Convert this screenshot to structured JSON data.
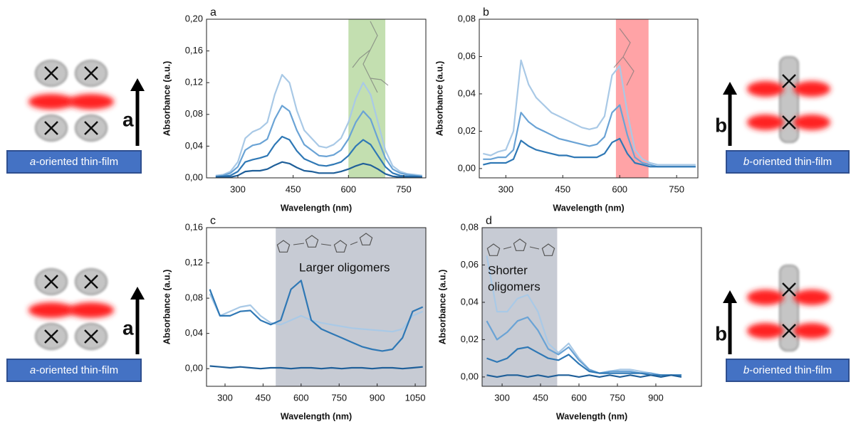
{
  "chart_data": [
    {
      "type": "line",
      "panel_label": "a",
      "xlabel": "Wavelength (nm)",
      "ylabel": "Absorbance (a.u.)",
      "xlim": [
        215,
        810
      ],
      "ylim": [
        0,
        0.2
      ],
      "xticks": [
        300,
        450,
        600,
        750
      ],
      "yticks": [
        {
          "value": 0,
          "label": "0,00"
        },
        {
          "value": 0.04,
          "label": "0,04"
        },
        {
          "value": 0.08,
          "label": "0,08"
        },
        {
          "value": 0.12,
          "label": "0,12"
        },
        {
          "value": 0.16,
          "label": "0,16"
        },
        {
          "value": 0.2,
          "label": "0,20"
        }
      ],
      "highlight": {
        "x": [
          600,
          700
        ],
        "color": "#a9d18e"
      },
      "x": [
        240,
        260,
        280,
        300,
        320,
        340,
        360,
        380,
        400,
        420,
        440,
        460,
        480,
        500,
        520,
        540,
        560,
        580,
        600,
        620,
        640,
        660,
        680,
        700,
        720,
        740,
        760,
        780,
        800
      ],
      "series": [
        {
          "color": "#a9c9e6",
          "values": [
            0.003,
            0.004,
            0.008,
            0.02,
            0.05,
            0.058,
            0.062,
            0.07,
            0.105,
            0.13,
            0.12,
            0.085,
            0.06,
            0.05,
            0.04,
            0.038,
            0.042,
            0.05,
            0.07,
            0.1,
            0.12,
            0.105,
            0.07,
            0.035,
            0.015,
            0.008,
            0.005,
            0.004,
            0.003
          ]
        },
        {
          "color": "#6aa3d5",
          "values": [
            0.002,
            0.003,
            0.006,
            0.014,
            0.035,
            0.041,
            0.043,
            0.049,
            0.074,
            0.091,
            0.084,
            0.06,
            0.042,
            0.035,
            0.028,
            0.027,
            0.029,
            0.035,
            0.049,
            0.07,
            0.084,
            0.074,
            0.049,
            0.025,
            0.011,
            0.006,
            0.004,
            0.003,
            0.002
          ]
        },
        {
          "color": "#2f78b5",
          "values": [
            0.001,
            0.002,
            0.003,
            0.008,
            0.02,
            0.023,
            0.025,
            0.028,
            0.042,
            0.052,
            0.048,
            0.034,
            0.024,
            0.02,
            0.016,
            0.015,
            0.017,
            0.02,
            0.028,
            0.04,
            0.048,
            0.042,
            0.028,
            0.014,
            0.006,
            0.003,
            0.002,
            0.002,
            0.001
          ]
        },
        {
          "color": "#1f5f99",
          "values": [
            0.001,
            0.001,
            0.001,
            0.003,
            0.008,
            0.009,
            0.009,
            0.011,
            0.016,
            0.02,
            0.018,
            0.013,
            0.009,
            0.008,
            0.006,
            0.006,
            0.006,
            0.008,
            0.011,
            0.015,
            0.018,
            0.016,
            0.011,
            0.005,
            0.002,
            0.001,
            0.001,
            0.001,
            0.001
          ]
        }
      ]
    },
    {
      "type": "line",
      "panel_label": "b",
      "xlabel": "Wavelength (nm)",
      "ylabel": "Absorbance (a.u.)",
      "xlim": [
        230,
        806
      ],
      "ylim": [
        -0.005,
        0.08
      ],
      "xticks": [
        300,
        450,
        600,
        750
      ],
      "yticks": [
        {
          "value": 0,
          "label": "0,00"
        },
        {
          "value": 0.02,
          "label": "0,02"
        },
        {
          "value": 0.04,
          "label": "0,04"
        },
        {
          "value": 0.06,
          "label": "0,06"
        },
        {
          "value": 0.08,
          "label": "0,08"
        }
      ],
      "highlight": {
        "x": [
          590,
          676
        ],
        "color": "#ff7c80"
      },
      "x": [
        240,
        260,
        280,
        300,
        320,
        340,
        360,
        380,
        400,
        420,
        440,
        460,
        480,
        500,
        520,
        540,
        560,
        580,
        600,
        620,
        640,
        660,
        680,
        700,
        720,
        740,
        760,
        780,
        800
      ],
      "series": [
        {
          "color": "#a9c9e6",
          "values": [
            0.008,
            0.007,
            0.009,
            0.01,
            0.02,
            0.058,
            0.045,
            0.038,
            0.034,
            0.03,
            0.028,
            0.026,
            0.024,
            0.022,
            0.021,
            0.022,
            0.028,
            0.05,
            0.055,
            0.03,
            0.01,
            0.005,
            0.003,
            0.002,
            0.002,
            0.002,
            0.002,
            0.002,
            0.002
          ]
        },
        {
          "color": "#6aa3d5",
          "values": [
            0.005,
            0.005,
            0.006,
            0.006,
            0.01,
            0.03,
            0.025,
            0.022,
            0.02,
            0.018,
            0.016,
            0.015,
            0.014,
            0.013,
            0.012,
            0.013,
            0.017,
            0.03,
            0.034,
            0.018,
            0.006,
            0.003,
            0.002,
            0.001,
            0.001,
            0.001,
            0.001,
            0.001,
            0.001
          ]
        },
        {
          "color": "#2f78b5",
          "values": [
            0.002,
            0.003,
            0.003,
            0.003,
            0.005,
            0.015,
            0.012,
            0.01,
            0.009,
            0.008,
            0.007,
            0.007,
            0.006,
            0.006,
            0.006,
            0.006,
            0.008,
            0.014,
            0.016,
            0.008,
            0.003,
            0.002,
            0.001,
            0.001,
            0.001,
            0.001,
            0.001,
            0.001,
            0.001
          ]
        }
      ]
    },
    {
      "type": "line",
      "panel_label": "c",
      "xlabel": "Wavelength (nm)",
      "ylabel": "Absorbance (a.u.)",
      "xlim": [
        227,
        1092
      ],
      "ylim": [
        -0.02,
        0.16
      ],
      "xticks": [
        300,
        450,
        600,
        750,
        900,
        1050
      ],
      "yticks": [
        {
          "value": 0,
          "label": "0,00"
        },
        {
          "value": 0.04,
          "label": "0,04"
        },
        {
          "value": 0.08,
          "label": "0,08"
        },
        {
          "value": 0.12,
          "label": "0,12"
        },
        {
          "value": 0.16,
          "label": "0,16"
        }
      ],
      "highlight": {
        "x": [
          500,
          1092
        ],
        "color": "#b4b9c5"
      },
      "annotations": [
        "Larger oligomers"
      ],
      "x": [
        240,
        280,
        320,
        360,
        400,
        440,
        480,
        520,
        560,
        600,
        640,
        680,
        720,
        760,
        800,
        840,
        880,
        920,
        960,
        1000,
        1040,
        1080
      ],
      "series": [
        {
          "color": "#a9c9e6",
          "values": [
            0.085,
            0.06,
            0.065,
            0.07,
            0.072,
            0.06,
            0.052,
            0.05,
            0.055,
            0.06,
            0.055,
            0.052,
            0.05,
            0.048,
            0.046,
            0.045,
            0.044,
            0.043,
            0.042,
            0.045,
            0.06,
            0.065
          ]
        },
        {
          "color": "#2f78b5",
          "values": [
            0.09,
            0.06,
            0.06,
            0.065,
            0.066,
            0.055,
            0.05,
            0.055,
            0.09,
            0.1,
            0.055,
            0.045,
            0.04,
            0.035,
            0.03,
            0.025,
            0.022,
            0.02,
            0.022,
            0.035,
            0.065,
            0.07
          ]
        },
        {
          "color": "#1f5f99",
          "values": [
            0.003,
            0.002,
            0.001,
            0.002,
            0.001,
            0.0,
            0.001,
            0.001,
            0.0,
            0.001,
            0.001,
            0.0,
            0.001,
            0.0,
            0.001,
            0.001,
            0.0,
            0.001,
            0.001,
            0.0,
            0.001,
            0.002
          ]
        }
      ]
    },
    {
      "type": "line",
      "panel_label": "d",
      "xlabel": "Wavelength (nm)",
      "ylabel": "Absorbance (a.u.)",
      "xlim": [
        222,
        1078
      ],
      "ylim": [
        -0.005,
        0.08
      ],
      "xticks": [
        300,
        450,
        600,
        750,
        900
      ],
      "yticks": [
        {
          "value": 0,
          "label": "0,00"
        },
        {
          "value": 0.02,
          "label": "0,02"
        },
        {
          "value": 0.04,
          "label": "0,04"
        },
        {
          "value": 0.06,
          "label": "0,06"
        },
        {
          "value": 0.08,
          "label": "0,08"
        }
      ],
      "highlight": {
        "x": [
          222,
          515
        ],
        "color": "#b4b9c5"
      },
      "annotations": [
        "Shorter",
        "oligomers"
      ],
      "x": [
        240,
        280,
        320,
        360,
        400,
        440,
        480,
        520,
        560,
        600,
        640,
        680,
        720,
        760,
        800,
        840,
        880,
        920,
        960,
        1000
      ],
      "series": [
        {
          "color": "#a9c9e6",
          "values": [
            0.065,
            0.035,
            0.035,
            0.042,
            0.044,
            0.035,
            0.018,
            0.013,
            0.018,
            0.01,
            0.004,
            0.002,
            0.003,
            0.004,
            0.004,
            0.003,
            0.002,
            0.001,
            0.001,
            0.001
          ]
        },
        {
          "color": "#6aa3d5",
          "values": [
            0.03,
            0.02,
            0.024,
            0.03,
            0.032,
            0.025,
            0.015,
            0.012,
            0.016,
            0.009,
            0.004,
            0.002,
            0.003,
            0.003,
            0.003,
            0.002,
            0.002,
            0.001,
            0.001,
            0.001
          ]
        },
        {
          "color": "#2f78b5",
          "values": [
            0.01,
            0.008,
            0.01,
            0.015,
            0.016,
            0.013,
            0.01,
            0.009,
            0.012,
            0.007,
            0.003,
            0.002,
            0.002,
            0.002,
            0.002,
            0.002,
            0.001,
            0.001,
            0.001,
            0.001
          ]
        },
        {
          "color": "#1f5f99",
          "values": [
            0.001,
            0.0,
            0.001,
            0.001,
            0.0,
            0.001,
            0.0,
            0.001,
            0.001,
            0.0,
            0.001,
            0.0,
            0.001,
            0.0,
            0.001,
            0.0,
            0.001,
            0.0,
            0.001,
            0.0
          ]
        }
      ]
    }
  ],
  "illustrations": [
    {
      "letter": "a",
      "label_italic": "a",
      "label_rest": "-oriented thin-film"
    },
    {
      "letter": "b",
      "label_italic": "b",
      "label_rest": "-oriented thin-film"
    },
    {
      "letter": "a",
      "label_italic": "a",
      "label_rest": "-oriented thin-film"
    },
    {
      "letter": "b",
      "label_italic": "b",
      "label_rest": "-oriented thin-film"
    }
  ]
}
